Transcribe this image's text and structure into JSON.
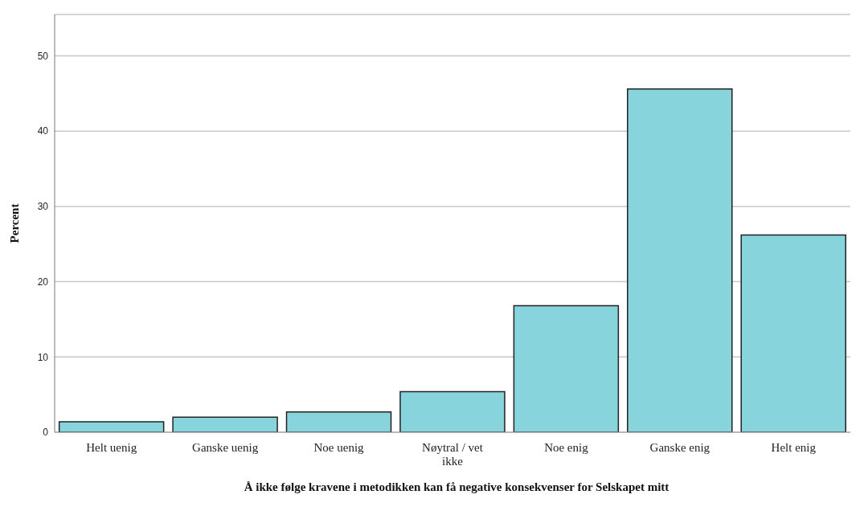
{
  "chart_data": {
    "type": "bar",
    "xlabel": "Å ikke følge kravene i metodikken kan få negative konsekvenser for Selskapet mitt",
    "ylabel": "Percent",
    "categories": [
      "Helt uenig",
      "Ganske uenig",
      "Noe uenig",
      "Nøytral / vet ikke",
      "Noe enig",
      "Ganske enig",
      "Helt enig"
    ],
    "values": [
      1.4,
      2.0,
      2.7,
      5.4,
      16.8,
      45.6,
      26.2
    ],
    "color": "#88d4dc",
    "ylim": [
      0,
      55.5
    ],
    "yticks": [
      0,
      10,
      20,
      30,
      40,
      50
    ],
    "grid": "y"
  }
}
